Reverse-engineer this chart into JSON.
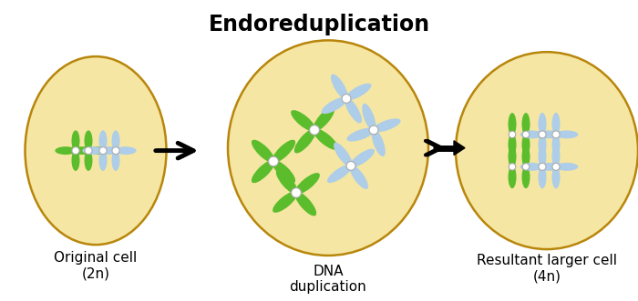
{
  "title": "Endoreduplication",
  "title_fontsize": 17,
  "title_fontweight": "bold",
  "bg_color": "#ffffff",
  "cell_fill": "#F5E6A3",
  "cell_edge": "#B8860B",
  "cell_edge_width": 1.8,
  "labels": [
    "Original cell\n(2n)",
    "DNA\nduplication",
    "Resultant larger cell\n(4n)"
  ],
  "label_fontsize": 11,
  "green_color": "#5BBD2C",
  "blue_color": "#AECDE8",
  "centromere_color": "#ffffff"
}
